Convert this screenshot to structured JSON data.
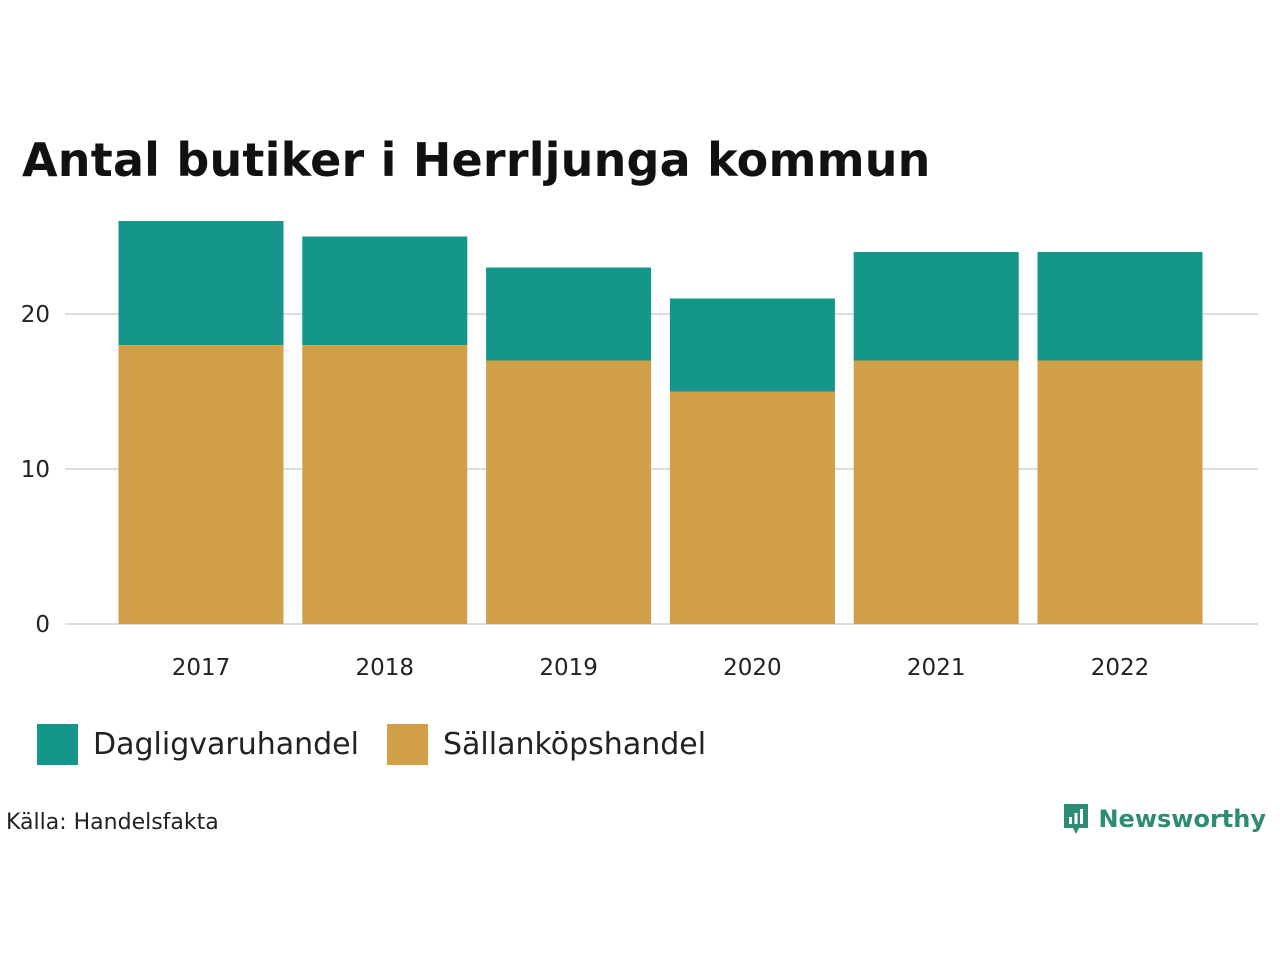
{
  "chart_data": {
    "type": "bar",
    "stacked": true,
    "title": "Antal butiker i Herrljunga kommun",
    "categories": [
      "2017",
      "2018",
      "2019",
      "2020",
      "2021",
      "2022"
    ],
    "series": [
      {
        "name": "Sällanköpshandel",
        "color": "#d09f48",
        "values": [
          18,
          18,
          17,
          15,
          17,
          17
        ]
      },
      {
        "name": "Dagligvaruhandel",
        "color": "#15968a",
        "values": [
          8,
          7,
          6,
          6,
          7,
          7
        ]
      }
    ],
    "yticks": [
      0,
      10,
      20
    ],
    "ylim": [
      0,
      26
    ],
    "xlabel": "",
    "ylabel": "",
    "grid": true,
    "legend_position": "bottom-left"
  },
  "legend": [
    {
      "label": "Dagligvaruhandel",
      "color": "#15968a"
    },
    {
      "label": "Sällanköpshandel",
      "color": "#d09f48"
    }
  ],
  "source": "Källa: Handelsfakta",
  "brand": {
    "name": "Newsworthy",
    "icon": "newsworthy-logo-icon",
    "color": "#2f8c74"
  }
}
